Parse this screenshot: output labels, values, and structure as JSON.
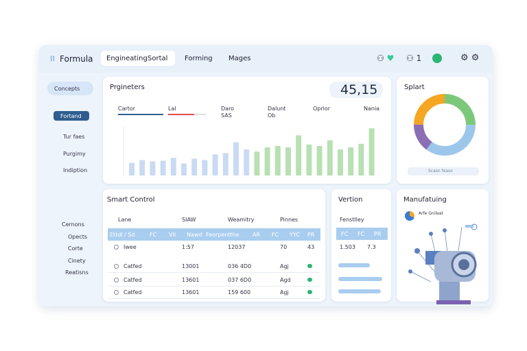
{
  "header": {
    "brand": "Formula",
    "tabs": [
      "Engineating",
      "Sortal"
    ],
    "nav": [
      "Forming",
      "Mages"
    ],
    "badge": "1"
  },
  "sidebar": {
    "pill": "Concepts",
    "button": "Fortand",
    "items": [
      "Tur faes",
      "Purgimy",
      "Indiption"
    ],
    "lower": [
      "Cernons",
      "Opects",
      "Corte",
      "Cinety",
      "Reatisns"
    ]
  },
  "parameters": {
    "title": "Prgineters",
    "big_value": "45,15",
    "controls": [
      "Cartor",
      "Lal",
      "Daro",
      "SAS",
      "Dalunt",
      "Ob",
      "Oprlor",
      "Nania"
    ],
    "chart": {
      "type": "bar",
      "values": [
        18,
        22,
        20,
        21,
        25,
        17,
        24,
        22,
        30,
        32,
        47,
        37,
        34,
        40,
        42,
        40,
        57,
        44,
        42,
        50,
        37,
        40,
        45,
        67
      ],
      "colors": [
        "#c9daf2",
        "#c9daf2",
        "#c9daf2",
        "#c9daf2",
        "#c9daf2",
        "#c9daf2",
        "#c9daf2",
        "#c9daf2",
        "#c9daf2",
        "#c9daf2",
        "#c9daf2",
        "#c9daf2",
        "#b8e0b3",
        "#b8e0b3",
        "#b8e0b3",
        "#b8e0b3",
        "#b8e0b3",
        "#b8e0b3",
        "#b8e0b3",
        "#b8e0b3",
        "#b8e0b3",
        "#b8e0b3",
        "#b8e0b3",
        "#b8e0b3"
      ],
      "ylim": [
        0,
        70
      ]
    }
  },
  "splart": {
    "title": "Splart",
    "chart": {
      "type": "pie",
      "values": [
        25,
        35,
        15,
        25
      ],
      "colors": [
        "#7cc87a",
        "#9cc7ea",
        "#8a6fb5",
        "#f5a623"
      ]
    },
    "button": "Scasn feaso"
  },
  "smart_control": {
    "title": "Smart Control",
    "columns": [
      "Lane",
      "SIAW",
      "Weamitry",
      "Pinnes"
    ],
    "header_row": [
      "Ettdl / Sd",
      "FC",
      "VII",
      "Nawd",
      "Feorpentthe",
      "AR",
      "FC",
      "YYC",
      "PR"
    ],
    "rows": [
      [
        "Iwee",
        "1:57",
        "12037",
        "70",
        "43"
      ],
      [
        "Catfed",
        "13001",
        "036 4D0",
        "Agj"
      ],
      [
        "Catfed",
        "13601",
        "037 6D0",
        "Agd"
      ],
      [
        "Catfed",
        "13601",
        "159 600",
        "Agj"
      ]
    ]
  },
  "vertion": {
    "title": "Vertion",
    "subtitle": "Fenstlley",
    "header_row": [
      "FC",
      "FC",
      "PR"
    ],
    "row": [
      "1.503",
      "7.3"
    ]
  },
  "manufacturing": {
    "title": "Manufatuing",
    "label": "Arfe Gnileat"
  }
}
